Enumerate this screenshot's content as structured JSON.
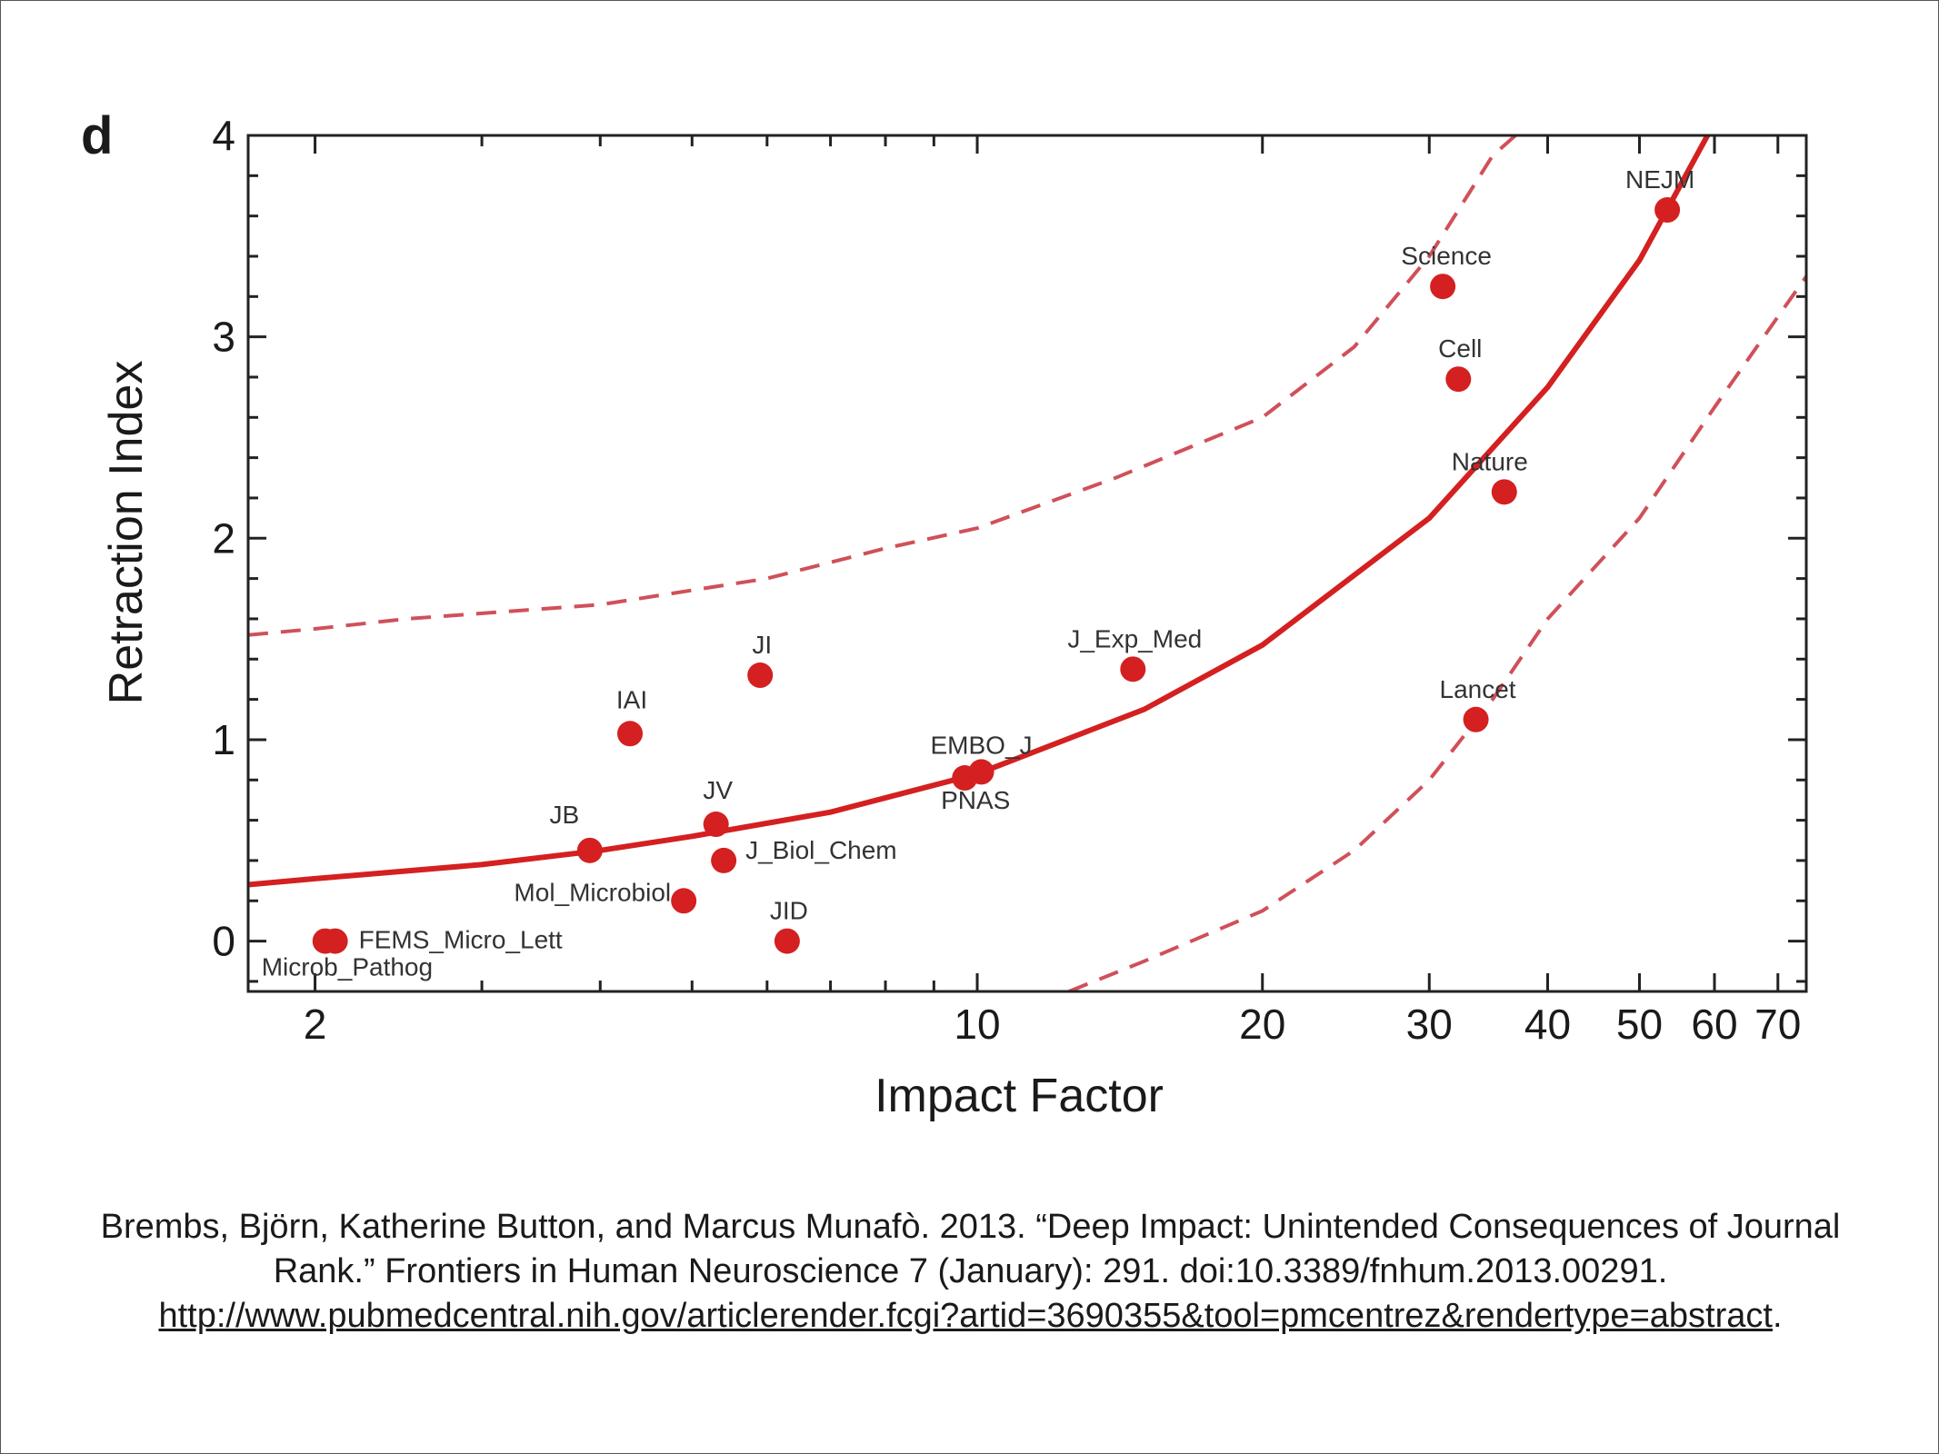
{
  "panel_label": "d",
  "chart_data": {
    "type": "scatter",
    "xlabel": "Impact Factor",
    "ylabel": "Retraction Index",
    "xscale": "log",
    "xlim": [
      1.7,
      75
    ],
    "ylim": [
      -0.25,
      4
    ],
    "xticks": [
      2,
      10,
      20,
      30,
      40,
      50,
      60,
      70
    ],
    "yticks": [
      0,
      1,
      2,
      3,
      4
    ],
    "grid": false,
    "colors": {
      "points": "#d42020",
      "fit": "#d42020",
      "band": "#d0505a"
    },
    "points": [
      {
        "label": "Microb_Pathog",
        "x": 2.05,
        "y": 0.0
      },
      {
        "label": "FEMS_Micro_Lett",
        "x": 2.1,
        "y": 0.0
      },
      {
        "label": "Mol_Microbiol",
        "x": 4.9,
        "y": 0.2
      },
      {
        "label": "JB",
        "x": 3.9,
        "y": 0.45
      },
      {
        "label": "IAI",
        "x": 4.3,
        "y": 1.03
      },
      {
        "label": "JV",
        "x": 5.3,
        "y": 0.58
      },
      {
        "label": "J_Biol_Chem",
        "x": 5.4,
        "y": 0.4
      },
      {
        "label": "JI",
        "x": 5.9,
        "y": 1.32
      },
      {
        "label": "JID",
        "x": 6.3,
        "y": 0.0
      },
      {
        "label": "PNAS",
        "x": 9.7,
        "y": 0.81
      },
      {
        "label": "EMBO_J",
        "x": 10.1,
        "y": 0.84
      },
      {
        "label": "J_Exp_Med",
        "x": 14.6,
        "y": 1.35
      },
      {
        "label": "Science",
        "x": 31.0,
        "y": 3.25
      },
      {
        "label": "Cell",
        "x": 32.2,
        "y": 2.79
      },
      {
        "label": "Nature",
        "x": 36.0,
        "y": 2.23
      },
      {
        "label": "Lancet",
        "x": 33.6,
        "y": 1.1
      },
      {
        "label": "NEJM",
        "x": 53.5,
        "y": 3.63
      }
    ],
    "fit_curve": [
      {
        "x": 1.7,
        "y": 0.28
      },
      {
        "x": 2.0,
        "y": 0.31
      },
      {
        "x": 3.0,
        "y": 0.38
      },
      {
        "x": 4.0,
        "y": 0.45
      },
      {
        "x": 5.0,
        "y": 0.52
      },
      {
        "x": 7.0,
        "y": 0.64
      },
      {
        "x": 10.0,
        "y": 0.83
      },
      {
        "x": 15.0,
        "y": 1.15
      },
      {
        "x": 20.0,
        "y": 1.47
      },
      {
        "x": 30.0,
        "y": 2.1
      },
      {
        "x": 40.0,
        "y": 2.75
      },
      {
        "x": 50.0,
        "y": 3.38
      },
      {
        "x": 59.0,
        "y": 4.0
      }
    ],
    "upper_band": [
      {
        "x": 1.7,
        "y": 1.52
      },
      {
        "x": 2.0,
        "y": 1.55
      },
      {
        "x": 2.5,
        "y": 1.6
      },
      {
        "x": 4.0,
        "y": 1.67
      },
      {
        "x": 6.0,
        "y": 1.8
      },
      {
        "x": 8.0,
        "y": 1.95
      },
      {
        "x": 10.0,
        "y": 2.05
      },
      {
        "x": 14.0,
        "y": 2.3
      },
      {
        "x": 20.0,
        "y": 2.6
      },
      {
        "x": 25.0,
        "y": 2.95
      },
      {
        "x": 30.0,
        "y": 3.4
      },
      {
        "x": 35.0,
        "y": 3.9
      },
      {
        "x": 37.0,
        "y": 4.0
      }
    ],
    "lower_band": [
      {
        "x": 12.5,
        "y": -0.25
      },
      {
        "x": 15.0,
        "y": -0.1
      },
      {
        "x": 20.0,
        "y": 0.15
      },
      {
        "x": 25.0,
        "y": 0.45
      },
      {
        "x": 30.0,
        "y": 0.8
      },
      {
        "x": 35.0,
        "y": 1.2
      },
      {
        "x": 40.0,
        "y": 1.6
      },
      {
        "x": 50.0,
        "y": 2.1
      },
      {
        "x": 60.0,
        "y": 2.65
      },
      {
        "x": 70.0,
        "y": 3.1
      },
      {
        "x": 75.0,
        "y": 3.3
      }
    ]
  },
  "caption": {
    "text": "Brembs, Björn, Katherine Button, and Marcus Munafò. 2013. “Deep Impact: Unintended Consequences of Journal Rank.” Frontiers in Human Neuroscience 7 (January): 291. doi:10.3389/fnhum.2013.00291. ",
    "link": "http://www.pubmedcentral.nih.gov/articlerender.fcgi?artid=3690355&tool=pmcentrez&rendertype=abstract",
    "trailing": "."
  }
}
